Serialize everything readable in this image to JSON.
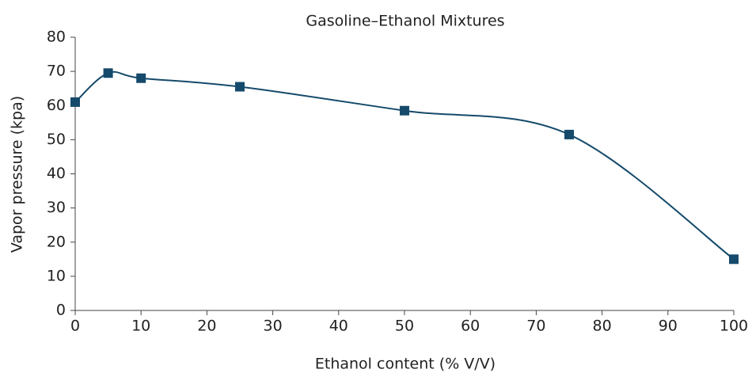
{
  "chart_data": {
    "type": "line",
    "title": "Gasoline–Ethanol Mixtures",
    "x_label": "Ethanol content (% V/V)",
    "y_label": "Vapor pressure (kpa)",
    "x": [
      0,
      5,
      10,
      25,
      50,
      75,
      100
    ],
    "series": [
      {
        "name": "Vapor pressure",
        "color": "#154a6b",
        "values": [
          61,
          69.5,
          68,
          65.5,
          58.5,
          51.5,
          15
        ]
      }
    ],
    "xlim": [
      0,
      100
    ],
    "xticks": [
      0,
      10,
      20,
      30,
      40,
      50,
      60,
      70,
      80,
      90,
      100
    ],
    "ylim": [
      0,
      80
    ],
    "yticks": [
      0,
      10,
      20,
      30,
      40,
      50,
      60,
      70,
      80
    ],
    "grid": false,
    "smooth": true,
    "marker": "square"
  }
}
